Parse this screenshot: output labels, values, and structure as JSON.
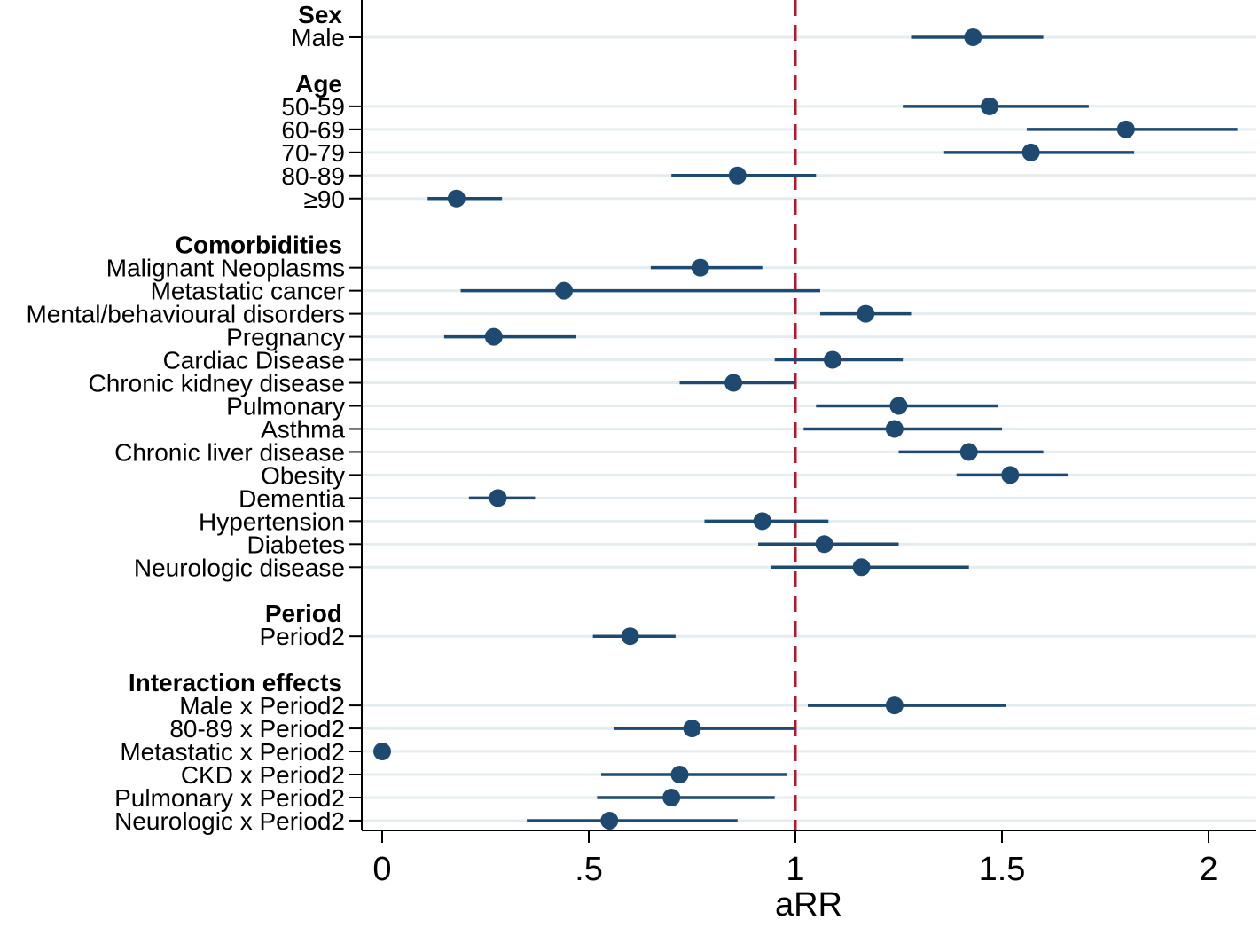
{
  "chart_data": {
    "type": "forest",
    "xlabel": "aRR",
    "xlim": [
      -0.05,
      2.12
    ],
    "xticks": [
      0,
      0.5,
      1,
      1.5,
      2
    ],
    "xtick_labels": [
      "0",
      ".5",
      "1",
      "1.5",
      "2"
    ],
    "reference_line": 1,
    "colors": {
      "point": "#1e4a72",
      "ci": "#1e4a72",
      "reference": "#c0122c",
      "gridline": "#e4ecef",
      "axis": "#000000"
    },
    "rows": [
      {
        "kind": "header",
        "label": "Sex"
      },
      {
        "kind": "item",
        "label": "Male",
        "est": 1.43,
        "lo": 1.28,
        "hi": 1.6
      },
      {
        "kind": "gap"
      },
      {
        "kind": "header",
        "label": "Age"
      },
      {
        "kind": "item",
        "label": "50-59",
        "est": 1.47,
        "lo": 1.26,
        "hi": 1.71
      },
      {
        "kind": "item",
        "label": "60-69",
        "est": 1.8,
        "lo": 1.56,
        "hi": 2.07
      },
      {
        "kind": "item",
        "label": "70-79",
        "est": 1.57,
        "lo": 1.36,
        "hi": 1.82
      },
      {
        "kind": "item",
        "label": "80-89",
        "est": 0.86,
        "lo": 0.7,
        "hi": 1.05
      },
      {
        "kind": "item",
        "label": "≥90",
        "est": 0.18,
        "lo": 0.11,
        "hi": 0.29
      },
      {
        "kind": "gap"
      },
      {
        "kind": "header",
        "label": "Comorbidities"
      },
      {
        "kind": "item",
        "label": "Malignant Neoplasms",
        "est": 0.77,
        "lo": 0.65,
        "hi": 0.92
      },
      {
        "kind": "item",
        "label": "Metastatic cancer",
        "est": 0.44,
        "lo": 0.19,
        "hi": 1.06
      },
      {
        "kind": "item",
        "label": "Mental/behavioural disorders",
        "est": 1.17,
        "lo": 1.06,
        "hi": 1.28
      },
      {
        "kind": "item",
        "label": "Pregnancy",
        "est": 0.27,
        "lo": 0.15,
        "hi": 0.47
      },
      {
        "kind": "item",
        "label": "Cardiac Disease",
        "est": 1.09,
        "lo": 0.95,
        "hi": 1.26
      },
      {
        "kind": "item",
        "label": "Chronic kidney disease",
        "est": 0.85,
        "lo": 0.72,
        "hi": 1.0
      },
      {
        "kind": "item",
        "label": "Pulmonary",
        "est": 1.25,
        "lo": 1.05,
        "hi": 1.49
      },
      {
        "kind": "item",
        "label": "Asthma",
        "est": 1.24,
        "lo": 1.02,
        "hi": 1.5
      },
      {
        "kind": "item",
        "label": "Chronic liver disease",
        "est": 1.42,
        "lo": 1.25,
        "hi": 1.6
      },
      {
        "kind": "item",
        "label": "Obesity",
        "est": 1.52,
        "lo": 1.39,
        "hi": 1.66
      },
      {
        "kind": "item",
        "label": "Dementia",
        "est": 0.28,
        "lo": 0.21,
        "hi": 0.37
      },
      {
        "kind": "item",
        "label": "Hypertension",
        "est": 0.92,
        "lo": 0.78,
        "hi": 1.08
      },
      {
        "kind": "item",
        "label": "Diabetes",
        "est": 1.07,
        "lo": 0.91,
        "hi": 1.25
      },
      {
        "kind": "item",
        "label": "Neurologic disease",
        "est": 1.16,
        "lo": 0.94,
        "hi": 1.42
      },
      {
        "kind": "gap"
      },
      {
        "kind": "header",
        "label": "Period"
      },
      {
        "kind": "item",
        "label": "Period2",
        "est": 0.6,
        "lo": 0.51,
        "hi": 0.71
      },
      {
        "kind": "gap"
      },
      {
        "kind": "header",
        "label": "Interaction effects"
      },
      {
        "kind": "item",
        "label": "Male x Period2",
        "est": 1.24,
        "lo": 1.03,
        "hi": 1.51
      },
      {
        "kind": "item",
        "label": "80-89 x Period2",
        "est": 0.75,
        "lo": 0.56,
        "hi": 1.0
      },
      {
        "kind": "item",
        "label": "Metastatic x Period2",
        "est": 0.0,
        "lo": 0.0,
        "hi": 0.0
      },
      {
        "kind": "item",
        "label": "CKD x Period2",
        "est": 0.72,
        "lo": 0.53,
        "hi": 0.98
      },
      {
        "kind": "item",
        "label": "Pulmonary x Period2",
        "est": 0.7,
        "lo": 0.52,
        "hi": 0.95
      },
      {
        "kind": "item",
        "label": "Neurologic x Period2",
        "est": 0.55,
        "lo": 0.35,
        "hi": 0.86
      }
    ]
  }
}
